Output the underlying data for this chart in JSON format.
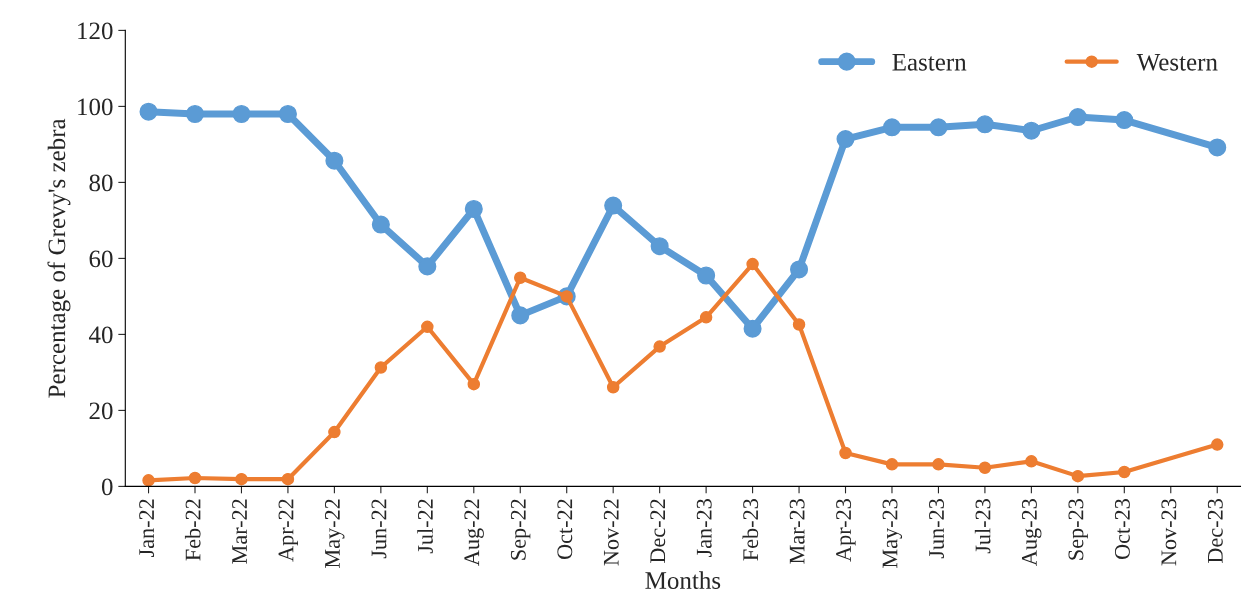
{
  "chart_data": {
    "type": "line",
    "xlabel": "Months",
    "ylabel": "Percentage of Grevy's zebra",
    "categories": [
      "Jan-22",
      "Feb-22",
      "Mar-22",
      "Apr-22",
      "May-22",
      "Jun-22",
      "Jul-22",
      "Aug-22",
      "Sep-22",
      "Oct-22",
      "Nov-22",
      "Dec-22",
      "Jan-23",
      "Feb-23",
      "Mar-23",
      "Apr-23",
      "May-23",
      "Jun-23",
      "Jul-23",
      "Aug-23",
      "Sep-23",
      "Oct-23",
      "Nov-23",
      "Dec-23"
    ],
    "series": [
      {
        "name": "Eastern",
        "color": "#5b9bd5",
        "values": [
          98.6,
          98.0,
          98.0,
          98.0,
          85.7,
          68.9,
          57.9,
          73.0,
          45.0,
          50.0,
          73.9,
          63.2,
          55.5,
          41.5,
          57.1,
          91.4,
          94.5,
          94.5,
          95.3,
          93.6,
          97.2,
          96.4,
          null,
          89.2
        ]
      },
      {
        "name": "Western",
        "color": "#ed7d31",
        "values": [
          1.6,
          2.2,
          1.9,
          1.9,
          14.3,
          31.3,
          42.0,
          26.9,
          54.9,
          50.0,
          26.1,
          36.8,
          44.5,
          58.5,
          42.6,
          8.8,
          5.8,
          5.8,
          4.9,
          6.6,
          2.7,
          3.8,
          null,
          11.0
        ]
      }
    ],
    "ylim": [
      0,
      120
    ],
    "yticks": [
      0,
      20,
      40,
      60,
      80,
      100,
      120
    ],
    "grid": false,
    "legend": "top right",
    "marker": "circle",
    "line_style": "solid"
  }
}
